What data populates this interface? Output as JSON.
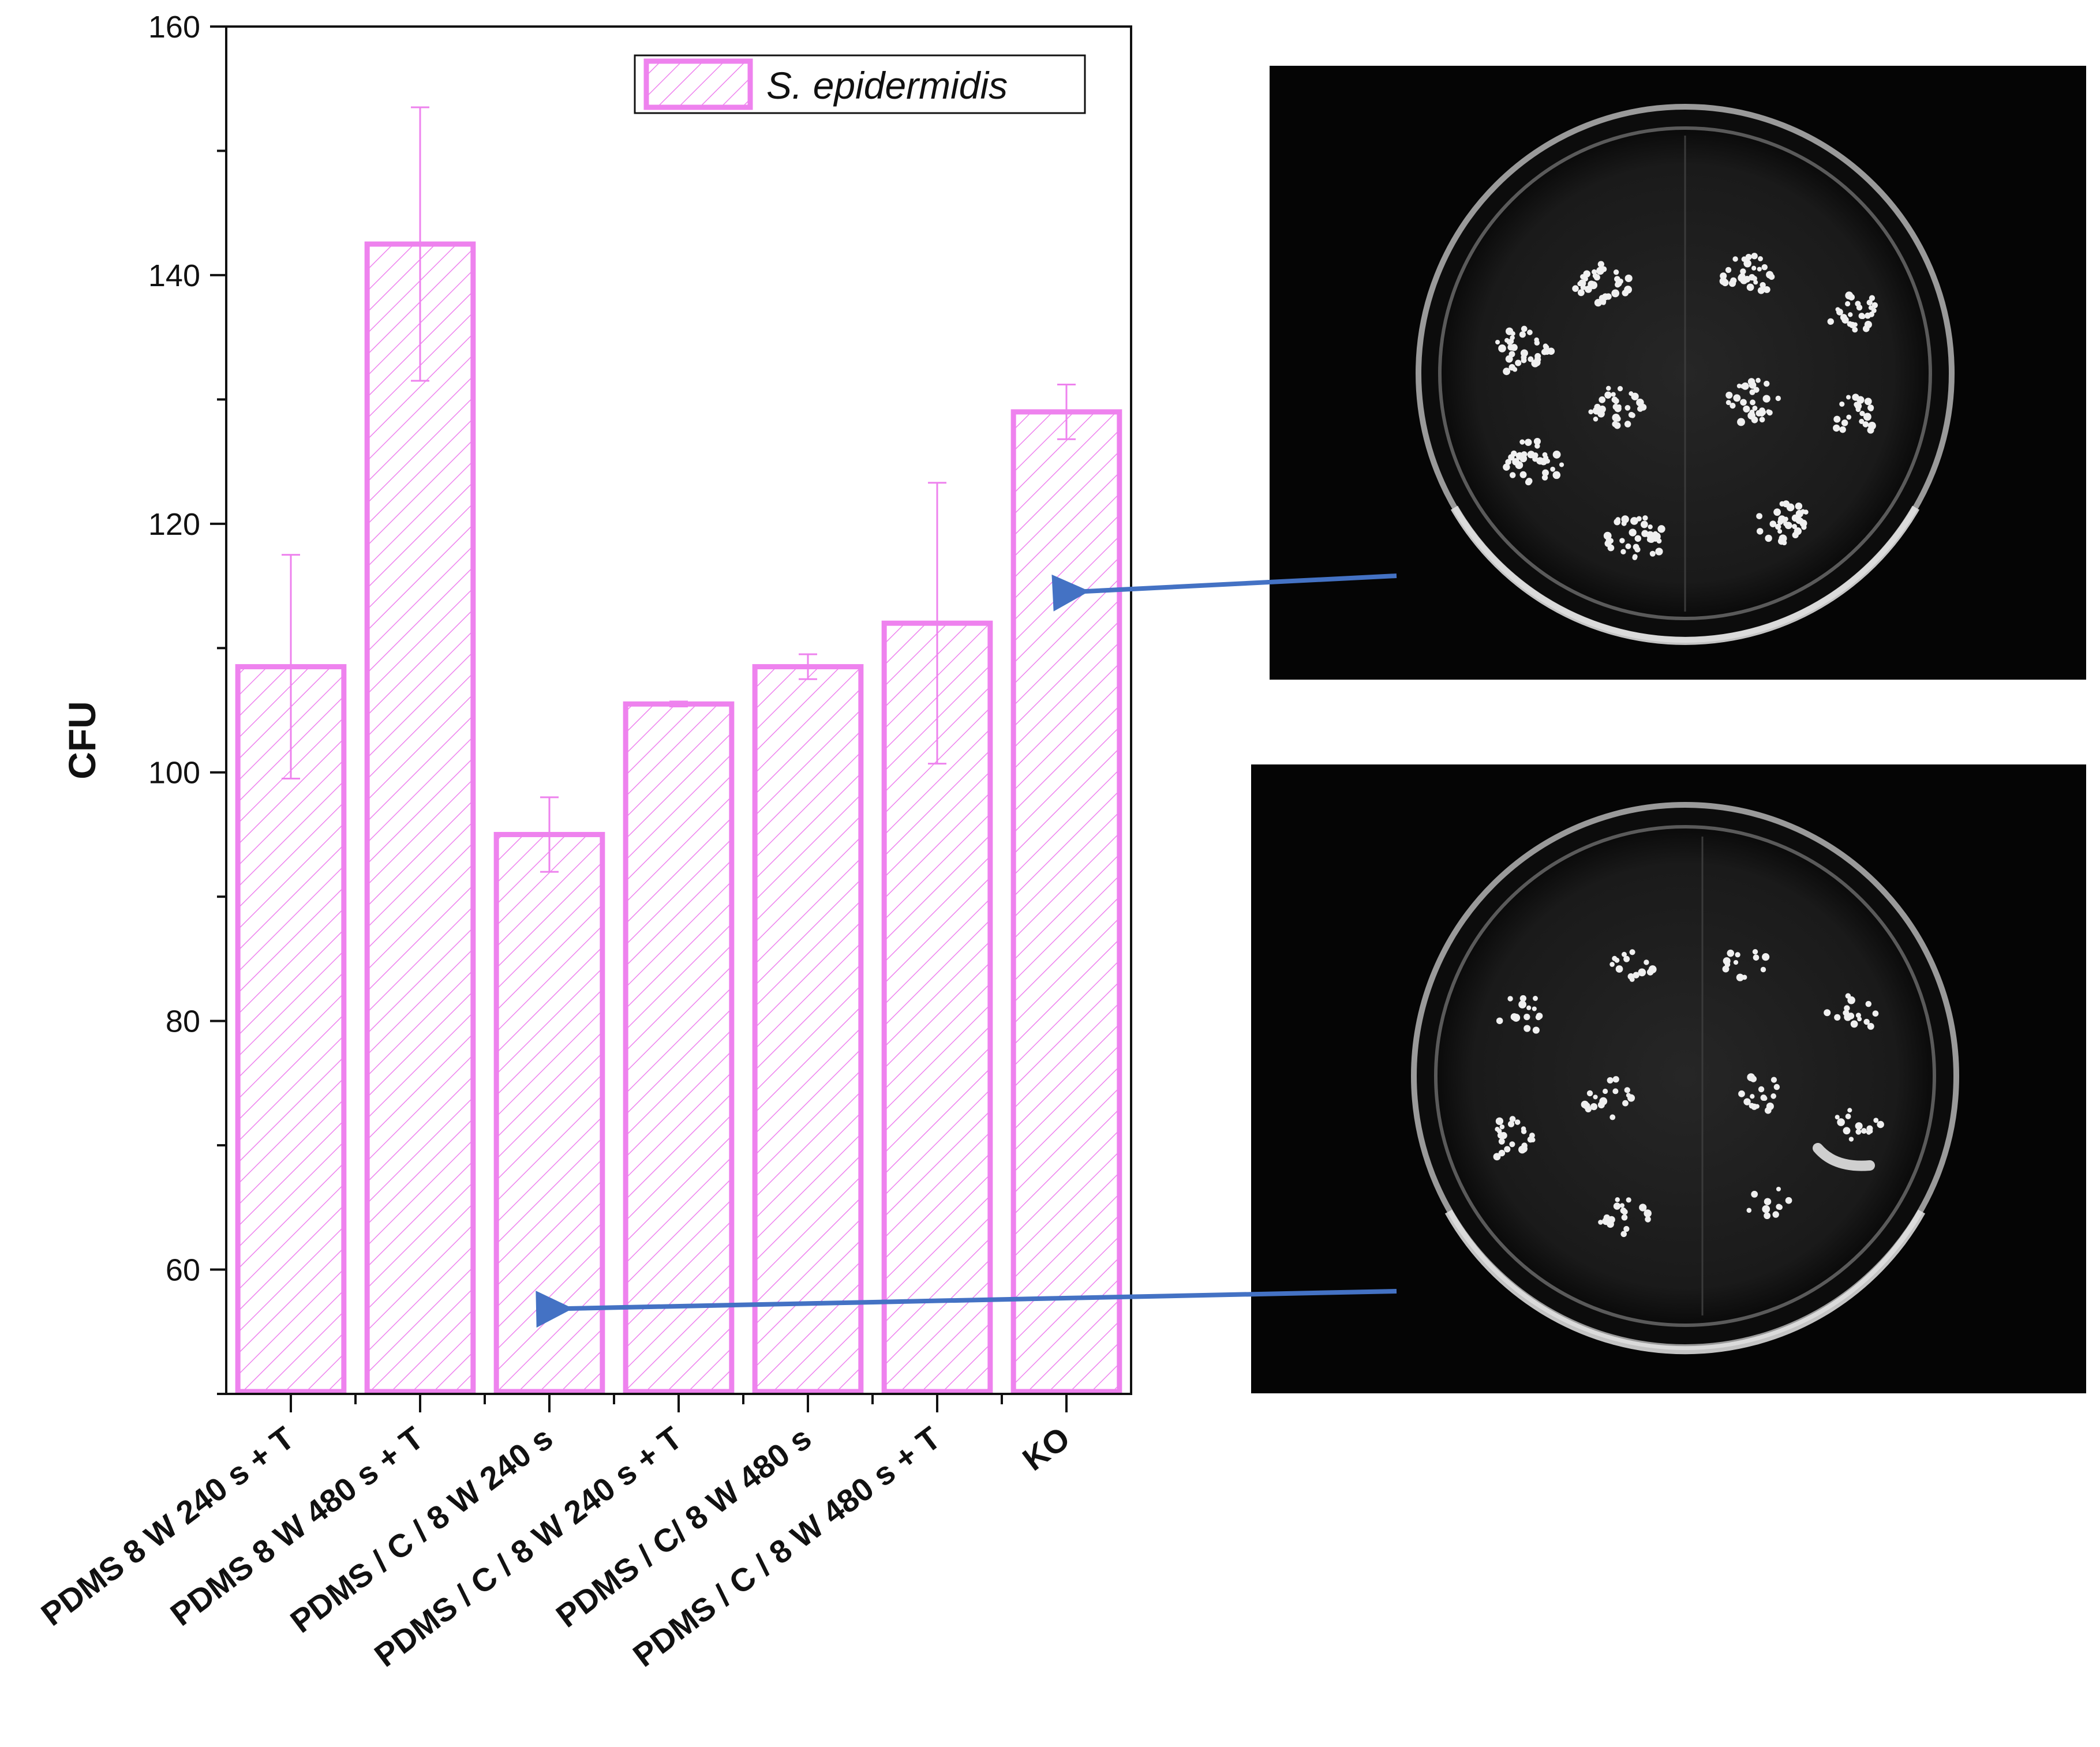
{
  "chart_data": {
    "type": "bar",
    "categories": [
      "PDMS 8 W 240 s + T",
      "PDMS 8 W 480 s + T",
      "PDMS / C / 8 W 240 s",
      "PDMS / C / 8 W 240 s + T",
      "PDMS / C/ 8 W 480 s",
      "PDMS / C / 8 W 480 s + T",
      "KO"
    ],
    "series": [
      {
        "name": "S. epidermidis",
        "values": [
          108.5,
          142.5,
          95.0,
          105.5,
          108.5,
          112.0,
          129.0
        ],
        "errors": [
          9.0,
          11.0,
          3.0,
          0.2,
          1.0,
          11.3,
          2.2
        ],
        "color": "#ee82ee"
      }
    ],
    "ylabel": "CFU",
    "xlabel": "",
    "ylim": [
      50,
      160
    ],
    "yticks": [
      60,
      80,
      100,
      120,
      140,
      160
    ],
    "legend_position": "top-right",
    "grid": false,
    "bar_fill": "diagonal-hatch"
  },
  "photos": [
    {
      "name": "upper-petri-dish",
      "arrow_to_category": "KO"
    },
    {
      "name": "lower-petri-dish",
      "arrow_to_category": "PDMS / C / 8 W 240 s"
    }
  ],
  "colors": {
    "bar": "#ee82ee",
    "arrow": "#4472c4",
    "photo_bg": "#050505"
  }
}
